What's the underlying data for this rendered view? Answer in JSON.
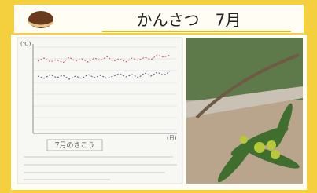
{
  "header": {
    "title": "かんさつ　7月"
  },
  "notebook": {
    "heading": "7月のきこう",
    "y_unit": "(℃)",
    "x_unit": "(日)"
  }
}
